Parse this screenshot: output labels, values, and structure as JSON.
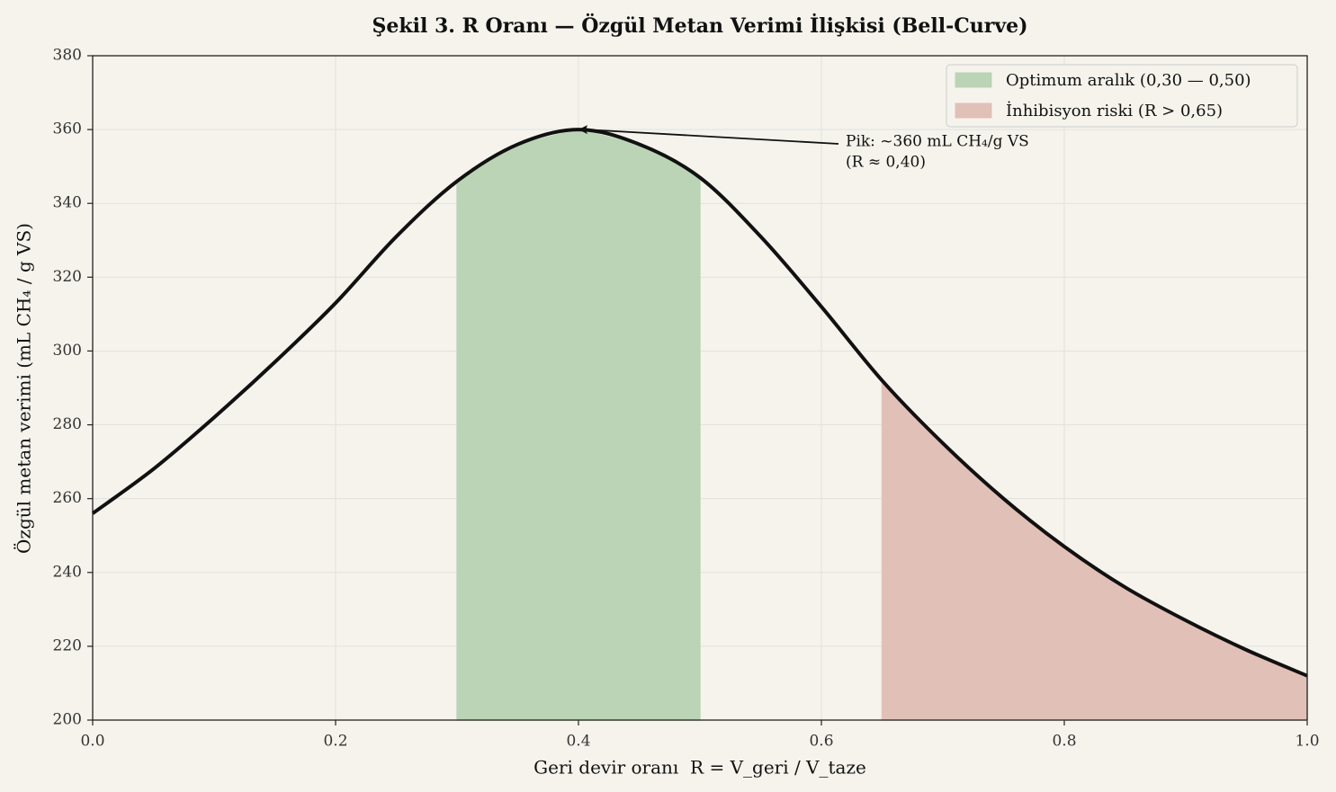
{
  "chart_data": {
    "type": "line",
    "title": "Şekil 3. R Oranı — Özgül Metan Verimi İlişkisi (Bell-Curve)",
    "xlabel": "Geri devir oranı  R = V_geri / V_taze",
    "ylabel": "Özgül metan verimi (mL CH₄ / g VS)",
    "x": [
      0,
      0.05,
      0.1,
      0.15,
      0.2,
      0.25,
      0.3,
      0.35,
      0.4,
      0.45,
      0.5,
      0.55,
      0.6,
      0.65,
      0.7,
      0.75,
      0.8,
      0.85,
      0.9,
      0.95,
      1.0
    ],
    "values": [
      256,
      268,
      282,
      297,
      313,
      331,
      346,
      356,
      360,
      356,
      347,
      331,
      312,
      292,
      275,
      260,
      247,
      236,
      227,
      219,
      212
    ],
    "color": "#111111",
    "regions": [
      {
        "name": "Optimum aralık (0,30 — 0,50)",
        "color": "#bad4b5",
        "range": [
          0.3,
          0.5
        ]
      },
      {
        "name": "İnhibisyon riski (R > 0,65)",
        "color": "#e1c0b7",
        "range": [
          0.65,
          1.0
        ]
      }
    ],
    "annotations": [
      {
        "text_lines": [
          "Pik: ~360 mL CH₄/g VS",
          "(R ≈ 0,40)"
        ],
        "xy": [
          0.4,
          360
        ]
      }
    ],
    "xlim": [
      0,
      1.0
    ],
    "xticks": [
      {
        "value": 0,
        "label": "0.0"
      },
      0.2,
      0.4,
      0.6,
      0.8,
      {
        "value": 1.0,
        "label": "1.0"
      }
    ],
    "ylim": [
      200,
      380
    ],
    "yticks": [
      200,
      220,
      240,
      260,
      280,
      300,
      320,
      340,
      360,
      380
    ],
    "grid": true,
    "legend": "upper right"
  }
}
